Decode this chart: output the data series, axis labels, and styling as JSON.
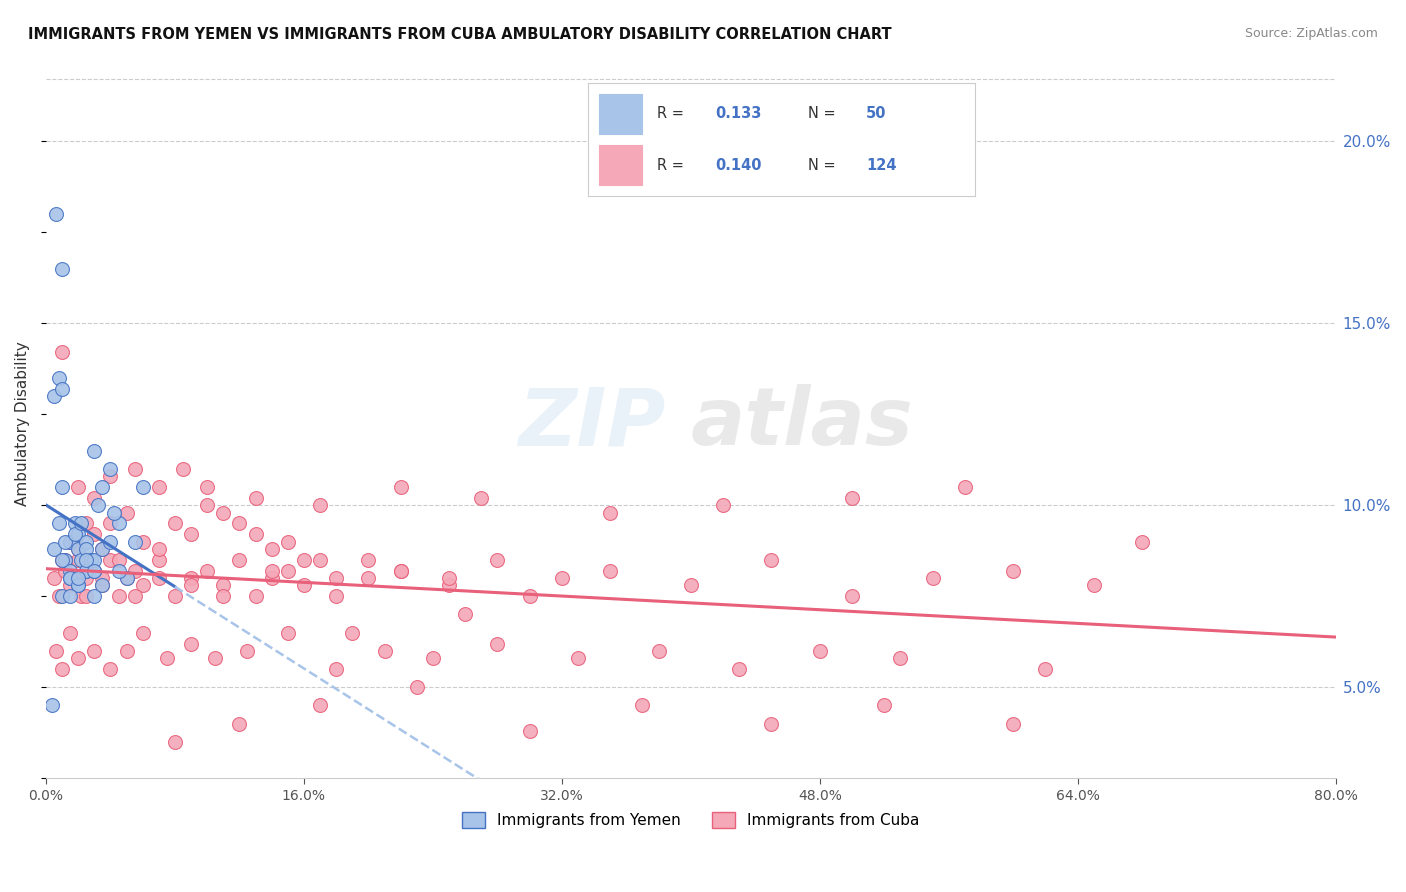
{
  "title": "IMMIGRANTS FROM YEMEN VS IMMIGRANTS FROM CUBA AMBULATORY DISABILITY CORRELATION CHART",
  "source": "Source: ZipAtlas.com",
  "ylabel": "Ambulatory Disability",
  "yticks": [
    5.0,
    10.0,
    15.0,
    20.0
  ],
  "ytick_labels": [
    "5.0%",
    "10.0%",
    "15.0%",
    "20.0%"
  ],
  "xmin": 0.0,
  "xmax": 80.0,
  "ymin": 2.5,
  "ymax": 22.0,
  "legend_r_yemen": "0.133",
  "legend_n_yemen": "50",
  "legend_r_cuba": "0.140",
  "legend_n_cuba": "124",
  "color_yemen": "#a8c4e8",
  "color_cuba": "#f4a8b8",
  "color_line_yemen": "#4472c4",
  "color_line_cuba": "#e8607a",
  "color_dashed": "#a8c4e8",
  "watermark_zip": "ZIP",
  "watermark_atlas": "atlas",
  "yemen_x": [
    0.5,
    0.8,
    1.0,
    1.2,
    1.5,
    1.5,
    1.8,
    2.0,
    2.0,
    2.2,
    2.5,
    2.5,
    2.8,
    3.0,
    3.0,
    3.5,
    4.0,
    4.5,
    5.0,
    6.0,
    1.0,
    1.5,
    2.0,
    2.5,
    3.0,
    0.5,
    1.0,
    1.5,
    2.0,
    2.5,
    3.0,
    3.5,
    4.0,
    0.8,
    1.2,
    1.8,
    2.2,
    3.2,
    4.2,
    0.6,
    1.0,
    1.5,
    2.0,
    2.5,
    3.0,
    3.5,
    4.5,
    5.5,
    0.4,
    1.0
  ],
  "yemen_y": [
    13.0,
    13.5,
    13.2,
    8.5,
    8.2,
    9.0,
    9.5,
    8.8,
    9.2,
    8.5,
    9.0,
    8.8,
    8.5,
    11.5,
    8.2,
    10.5,
    11.0,
    9.5,
    8.0,
    10.5,
    7.5,
    8.0,
    7.8,
    8.2,
    7.5,
    8.8,
    8.5,
    8.0,
    7.8,
    8.2,
    8.5,
    8.8,
    9.0,
    9.5,
    9.0,
    9.2,
    9.5,
    10.0,
    9.8,
    18.0,
    16.5,
    7.5,
    8.0,
    8.5,
    8.2,
    7.8,
    8.2,
    9.0,
    4.5,
    10.5
  ],
  "cuba_x": [
    0.5,
    0.8,
    1.0,
    1.2,
    1.5,
    1.8,
    2.0,
    2.2,
    2.5,
    3.0,
    3.5,
    4.0,
    4.5,
    5.0,
    5.5,
    6.0,
    7.0,
    8.0,
    9.0,
    10.0,
    11.0,
    12.0,
    13.0,
    14.0,
    15.0,
    16.0,
    17.0,
    18.0,
    20.0,
    22.0,
    25.0,
    28.0,
    30.0,
    32.0,
    35.0,
    40.0,
    45.0,
    50.0,
    55.0,
    60.0,
    65.0,
    1.0,
    1.5,
    2.0,
    2.5,
    3.0,
    3.5,
    4.0,
    5.0,
    6.0,
    7.0,
    8.0,
    9.0,
    10.0,
    11.0,
    12.0,
    13.0,
    14.0,
    15.0,
    16.0,
    18.0,
    20.0,
    22.0,
    25.0,
    0.6,
    1.0,
    1.5,
    2.0,
    3.0,
    4.0,
    5.0,
    6.0,
    7.5,
    9.0,
    10.5,
    12.5,
    15.0,
    18.0,
    21.0,
    24.0,
    28.0,
    33.0,
    38.0,
    43.0,
    48.0,
    53.0,
    62.0,
    2.0,
    3.0,
    4.0,
    5.5,
    7.0,
    8.5,
    10.0,
    13.0,
    17.0,
    22.0,
    27.0,
    35.0,
    42.0,
    50.0,
    57.0,
    8.0,
    12.0,
    17.0,
    23.0,
    30.0,
    37.0,
    45.0,
    52.0,
    60.0,
    68.0,
    1.2,
    1.8,
    2.5,
    3.5,
    4.5,
    5.5,
    7.0,
    9.0,
    11.0,
    14.0,
    19.0,
    26.0
  ],
  "cuba_y": [
    8.0,
    7.5,
    8.5,
    8.2,
    7.8,
    9.0,
    8.5,
    7.5,
    8.0,
    8.2,
    7.8,
    8.5,
    7.5,
    8.0,
    8.2,
    7.8,
    8.5,
    7.5,
    8.0,
    8.2,
    7.8,
    8.5,
    7.5,
    8.0,
    8.2,
    7.8,
    8.5,
    7.5,
    8.0,
    8.2,
    7.8,
    8.5,
    7.5,
    8.0,
    8.2,
    7.8,
    8.5,
    7.5,
    8.0,
    8.2,
    7.8,
    14.2,
    9.0,
    8.8,
    9.5,
    9.2,
    8.8,
    9.5,
    9.8,
    9.0,
    8.8,
    9.5,
    9.2,
    10.0,
    9.8,
    9.5,
    9.2,
    8.8,
    9.0,
    8.5,
    8.0,
    8.5,
    8.2,
    8.0,
    6.0,
    5.5,
    6.5,
    5.8,
    6.0,
    5.5,
    6.0,
    6.5,
    5.8,
    6.2,
    5.8,
    6.0,
    6.5,
    5.5,
    6.0,
    5.8,
    6.2,
    5.8,
    6.0,
    5.5,
    6.0,
    5.8,
    5.5,
    10.5,
    10.2,
    10.8,
    11.0,
    10.5,
    11.0,
    10.5,
    10.2,
    10.0,
    10.5,
    10.2,
    9.8,
    10.0,
    10.2,
    10.5,
    3.5,
    4.0,
    4.5,
    5.0,
    3.8,
    4.5,
    4.0,
    4.5,
    4.0,
    9.0,
    8.5,
    8.0,
    7.5,
    8.0,
    8.5,
    7.5,
    8.0,
    7.8,
    7.5,
    8.2,
    6.5,
    7.0
  ]
}
